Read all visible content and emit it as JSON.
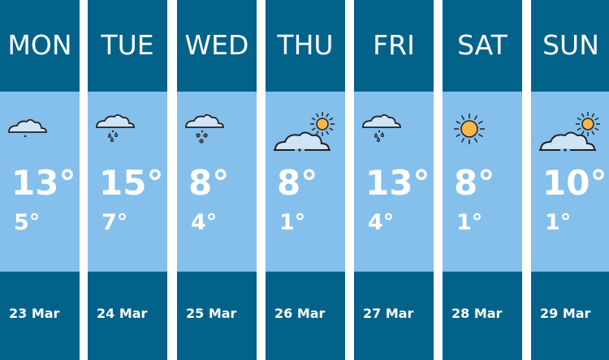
{
  "days": [
    {
      "day": "MON",
      "icon": "cloudy-icon",
      "high": "13°",
      "low": "5°",
      "date": "23 Mar"
    },
    {
      "day": "TUE",
      "icon": "rain-icon",
      "high": "15°",
      "low": "7°",
      "date": "24 Mar"
    },
    {
      "day": "WED",
      "icon": "snow-icon",
      "high": "8°",
      "low": "4°",
      "date": "25 Mar"
    },
    {
      "day": "THU",
      "icon": "partly-cloudy-icon",
      "high": "8°",
      "low": "1°",
      "date": "26 Mar"
    },
    {
      "day": "FRI",
      "icon": "rain-icon",
      "high": "13°",
      "low": "4°",
      "date": "27 Mar"
    },
    {
      "day": "SAT",
      "icon": "sun-icon",
      "high": "8°",
      "low": "1°",
      "date": "28 Mar"
    },
    {
      "day": "SUN",
      "icon": "partly-cloudy-icon",
      "high": "10°",
      "low": "1°",
      "date": "29 Mar"
    }
  ],
  "colors": {
    "header": "#02628a",
    "body": "#85bfec",
    "sun": "#f5b64a",
    "cloud": "#cfe4f7"
  }
}
